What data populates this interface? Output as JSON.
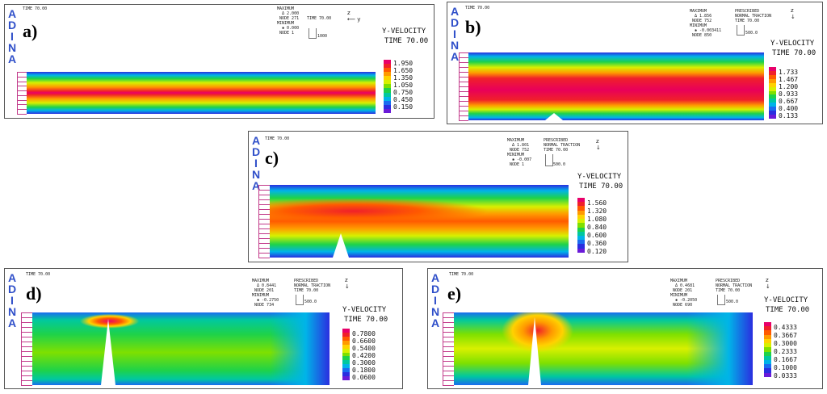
{
  "brand": {
    "letters": [
      "A",
      "D",
      "I",
      "N",
      "A"
    ],
    "color": "#2f4fc9"
  },
  "panels": [
    {
      "id": "a",
      "label": "a)",
      "time_text": "TIME 70.00",
      "info_left": "MAXIMUM\n  Δ 2.000\n NODE 271\nMINIMUM\n  ✱ 0.000\n NODE 1",
      "info_right": "",
      "title": "Y-VELOCITY",
      "subtitle": "TIME 70.00",
      "ticks": [
        "1.950",
        "1.650",
        "1.350",
        "1.050",
        "0.750",
        "0.450",
        "0.150"
      ],
      "small_label": "TIME 70.00",
      "box_value": "1000"
    },
    {
      "id": "b",
      "label": "b)",
      "time_text": "TIME 70.00",
      "info_left": "MAXIMUM\n  Δ 1.856\n NODE 752\nMINIMUM\n  ✱ -0.003411\n NODE 850",
      "info_right": "PRESCRIBED\nNORMAL TRACTION\nTIME 70.00",
      "title": "Y-VELOCITY",
      "subtitle": "TIME 70.00",
      "ticks": [
        "1.733",
        "1.467",
        "1.200",
        "0.933",
        "0.667",
        "0.400",
        "0.133"
      ],
      "small_label": "",
      "box_value": "500.0"
    },
    {
      "id": "c",
      "label": "c)",
      "time_text": "TIME 70.00",
      "info_left": "MAXIMUM\n  Δ 1.801\n NODE 752\nMINIMUM\n  ✱ -0.007\n NODE 1",
      "info_right": "PRESCRIBED\nNORMAL TRACTION\nTIME 70.00",
      "title": "Y-VELOCITY",
      "subtitle": "TIME 70.00",
      "ticks": [
        "1.560",
        "1.320",
        "1.080",
        "0.840",
        "0.600",
        "0.360",
        "0.120"
      ],
      "small_label": "",
      "box_value": "500.0"
    },
    {
      "id": "d",
      "label": "d)",
      "time_text": "TIME 70.00",
      "info_left": "MAXIMUM\n  Δ 0.8441\n NODE 201\nMINIMUM\n  ✱ -0.2750\n NODE 734",
      "info_right": "PRESCRIBED\nNORMAL TRACTION\nTIME 70.00",
      "title": "Y-VELOCITY",
      "subtitle": "TIME 70.00",
      "ticks": [
        "0.7800",
        "0.6600",
        "0.5400",
        "0.4200",
        "0.3000",
        "0.1800",
        "0.0600"
      ],
      "small_label": "",
      "box_value": "500.0"
    },
    {
      "id": "e",
      "label": "e)",
      "time_text": "TIME 70.00",
      "info_left": "MAXIMUM\n  Δ 0.4681\n NODE 201\nMINIMUM\n  ✱ -0.2050\n NODE 690",
      "info_right": "PRESCRIBED\nNORMAL TRACTION\nTIME 70.00",
      "title": "Y-VELOCITY",
      "subtitle": "TIME 70.00",
      "ticks": [
        "0.4333",
        "0.3667",
        "0.3000",
        "0.2333",
        "0.1667",
        "0.1000",
        "0.0333"
      ],
      "small_label": "",
      "box_value": "500.0"
    }
  ],
  "colormap": [
    "#e8006a",
    "#f0202a",
    "#ff5a00",
    "#ff9a00",
    "#ffd200",
    "#d8f000",
    "#7ee000",
    "#1ed24a",
    "#00c8a0",
    "#00b4e8",
    "#1a6cf0",
    "#2a2ee0",
    "#6a1ad8"
  ]
}
